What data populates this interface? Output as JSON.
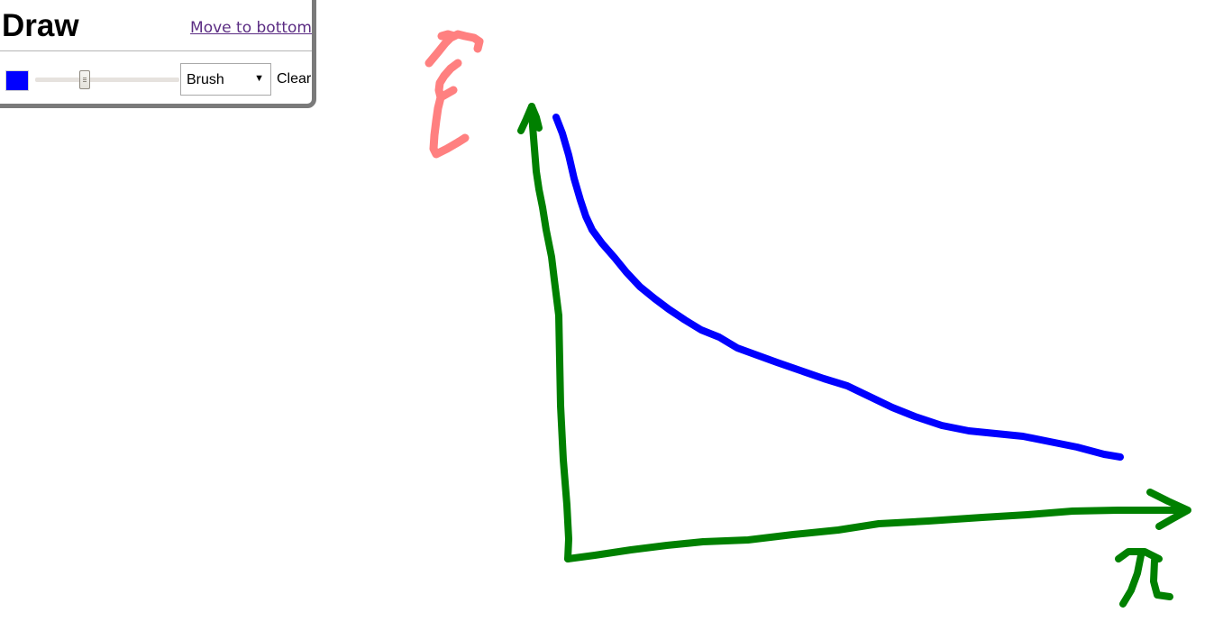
{
  "panel": {
    "title": "Draw",
    "move_link": "Move to bottom"
  },
  "toolbar": {
    "brush_color": "#0000ff",
    "brush_size_fraction": 0.33,
    "tool_selected": "Brush",
    "clear_label": "Clear",
    "dropdown_icon": "triangle-down"
  },
  "drawing": {
    "stroke_colors": {
      "axes": "#008000",
      "curve": "#0000ff",
      "y_label": "#ff8080"
    }
  }
}
